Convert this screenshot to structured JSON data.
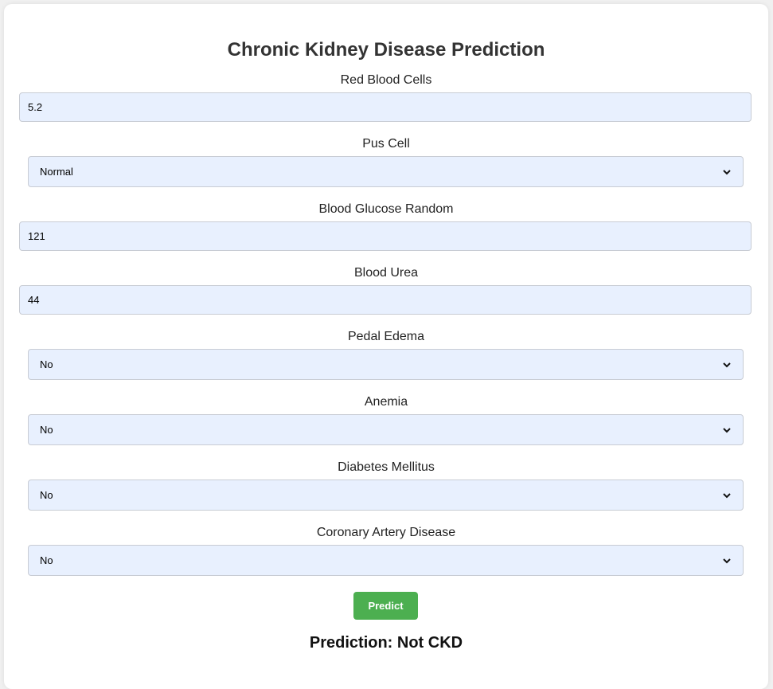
{
  "title": "Chronic Kidney Disease Prediction",
  "fields": [
    {
      "label": "Red Blood Cells",
      "type": "input",
      "value": "5.2"
    },
    {
      "label": "Pus Cell",
      "type": "select",
      "value": "Normal"
    },
    {
      "label": "Blood Glucose Random",
      "type": "input",
      "value": "121"
    },
    {
      "label": "Blood Urea",
      "type": "input",
      "value": "44"
    },
    {
      "label": "Pedal Edema",
      "type": "select",
      "value": "No"
    },
    {
      "label": "Anemia",
      "type": "select",
      "value": "No"
    },
    {
      "label": "Diabetes Mellitus",
      "type": "select",
      "value": "No"
    },
    {
      "label": "Coronary Artery Disease",
      "type": "select",
      "value": "No"
    }
  ],
  "predict_label": "Predict",
  "result_text": "Prediction: Not CKD",
  "colors": {
    "field_bg": "#e8f0fe",
    "button_bg": "#4caf50",
    "title": "#333333"
  },
  "icons": {
    "select_arrow": "chevron-down-icon"
  }
}
